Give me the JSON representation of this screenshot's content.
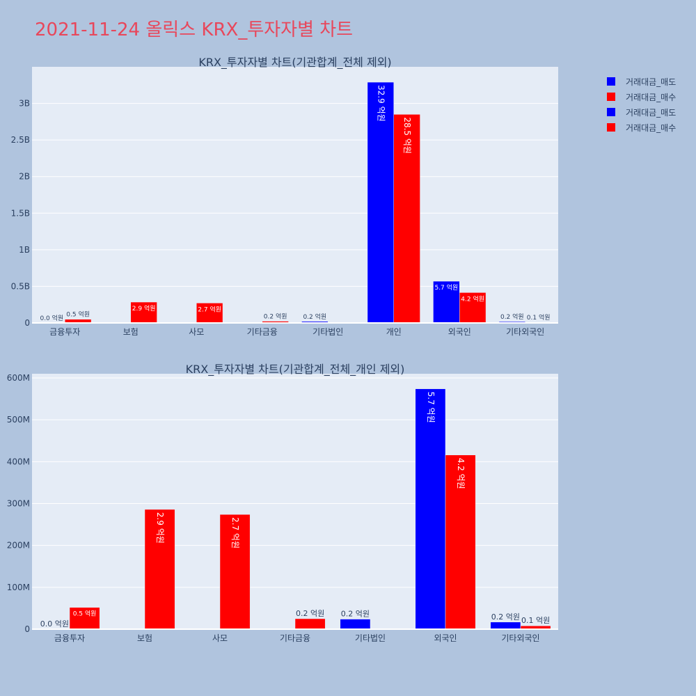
{
  "page": {
    "title": "2021-11-24 올릭스 KRX_투자자별 차트"
  },
  "colors": {
    "sell": "#0000ff",
    "buy": "#ff0000",
    "plot_bg": "#e5ecf6",
    "paper_bg": "#b0c4de",
    "grid": "#ffffff",
    "text": "#2a3f5f",
    "title": "#e8475b"
  },
  "legend": {
    "placement": "top-right",
    "items": [
      {
        "label": "거래대금_매도",
        "color": "#0000ff"
      },
      {
        "label": "거래대금_매수",
        "color": "#ff0000"
      },
      {
        "label": "거래대금_매도",
        "color": "#0000ff"
      },
      {
        "label": "거래대금_매수",
        "color": "#ff0000"
      }
    ]
  },
  "chart_data": [
    {
      "type": "bar",
      "title": "KRX_투자자별 차트(기관합계_전체 제외)",
      "categories": [
        "금융투자",
        "보험",
        "사모",
        "기타금융",
        "기타법인",
        "개인",
        "외국인",
        "기타외국인"
      ],
      "ylim": [
        0,
        3500000000
      ],
      "yticks": [
        0,
        500000000,
        1000000000,
        1500000000,
        2000000000,
        2500000000,
        3000000000
      ],
      "ytick_labels": [
        "0",
        "0.5B",
        "1B",
        "1.5B",
        "2B",
        "2.5B",
        "3B"
      ],
      "grid": true,
      "series": [
        {
          "name": "거래대금_매도",
          "color": "#0000ff",
          "values": [
            0,
            0,
            0,
            0,
            20000000,
            3290000000,
            570000000,
            17000000
          ],
          "labels": [
            "0.0 억원",
            "",
            "",
            "",
            "0.2 억원",
            "32.9 억원",
            "5.7 억원",
            "0.2 억원"
          ]
        },
        {
          "name": "거래대금_매수",
          "color": "#ff0000",
          "values": [
            50000000,
            285000000,
            272000000,
            23000000,
            0,
            2850000000,
            415000000,
            8000000
          ],
          "labels": [
            "0.5 억원",
            "2.9 억원",
            "2.7 억원",
            "0.2 억원",
            "",
            "28.5 억원",
            "4.2 억원",
            "0.1 억원"
          ]
        }
      ]
    },
    {
      "type": "bar",
      "title": "KRX_투자자별 차트(기관합계_전체_개인 제외)",
      "categories": [
        "금융투자",
        "보험",
        "사모",
        "기타금융",
        "기타법인",
        "외국인",
        "기타외국인"
      ],
      "ylim": [
        0,
        610000000
      ],
      "yticks": [
        0,
        100000000,
        200000000,
        300000000,
        400000000,
        500000000,
        600000000
      ],
      "ytick_labels": [
        "0",
        "100M",
        "200M",
        "300M",
        "400M",
        "500M",
        "600M"
      ],
      "grid": true,
      "series": [
        {
          "name": "거래대금_매도",
          "color": "#0000ff",
          "values": [
            0,
            0,
            0,
            0,
            24000000,
            574000000,
            17000000
          ],
          "labels": [
            "0.0 억원",
            "",
            "",
            "",
            "0.2 억원",
            "5.7 억원",
            "0.2 억원"
          ]
        },
        {
          "name": "거래대금_매수",
          "color": "#ff0000",
          "values": [
            52000000,
            286000000,
            274000000,
            25000000,
            0,
            416000000,
            8000000
          ],
          "labels": [
            "0.5 억원",
            "2.9 억원",
            "2.7 억원",
            "0.2 억원",
            "",
            "4.2 억원",
            "0.1 억원"
          ]
        }
      ]
    }
  ]
}
